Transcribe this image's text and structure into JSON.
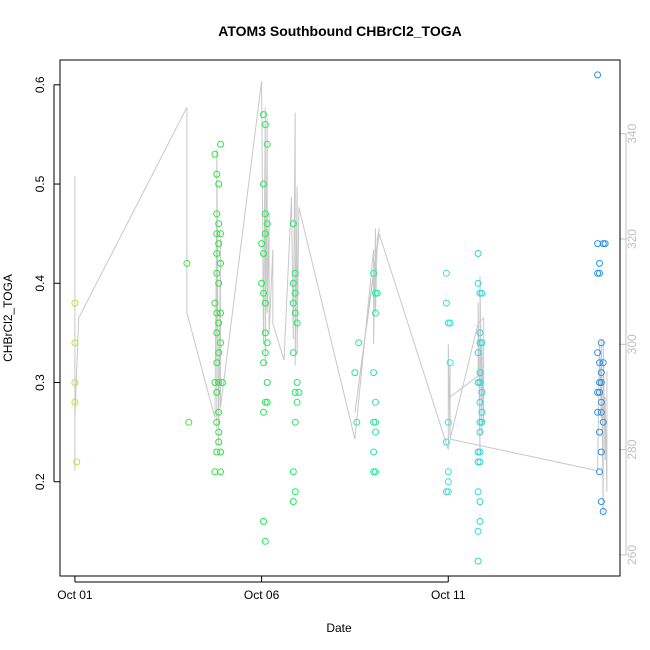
{
  "chart_data": {
    "type": "scatter",
    "title": "ATOM3 Southbound CHBrCl2_TOGA",
    "xlabel": "Date",
    "ylabel": "CHBrCl2_TOGA",
    "x_tick_labels": [
      "Oct 01",
      "Oct 06",
      "Oct 11"
    ],
    "x_tick_values": [
      1,
      6,
      11
    ],
    "xlim": [
      0.6,
      15.6
    ],
    "ylim": [
      0.105,
      0.625
    ],
    "y_ticks": [
      0.2,
      0.3,
      0.4,
      0.5,
      0.6
    ],
    "y_tick_labels": [
      "0.2",
      "0.3",
      "0.4",
      "0.5",
      "0.6"
    ],
    "y2_ticks": [
      260,
      280,
      300,
      320,
      340
    ],
    "y2_tick_labels": [
      "260",
      "280",
      "300",
      "320",
      "340"
    ],
    "y2lim": [
      256,
      354
    ],
    "grid": false,
    "colors": {
      "overlay_line": "#c8c8c8",
      "point_gradient_start": "#b5e636",
      "point_gradient_mid": "#22e838",
      "point_gradient_late": "#2ee8d6",
      "point_gradient_end": "#2b8fe8"
    },
    "series": [
      {
        "values": [
          [
            1.0,
            0.38
          ],
          [
            1.0,
            0.34
          ],
          [
            1.0,
            0.3
          ],
          [
            1.0,
            0.28
          ],
          [
            1.05,
            0.22
          ],
          [
            4.0,
            0.42
          ],
          [
            4.05,
            0.26
          ],
          [
            4.75,
            0.53
          ],
          [
            4.8,
            0.51
          ],
          [
            4.85,
            0.5
          ],
          [
            4.8,
            0.47
          ],
          [
            4.85,
            0.46
          ],
          [
            4.8,
            0.45
          ],
          [
            4.9,
            0.45
          ],
          [
            4.85,
            0.44
          ],
          [
            4.8,
            0.43
          ],
          [
            4.9,
            0.42
          ],
          [
            4.8,
            0.41
          ],
          [
            4.85,
            0.4
          ],
          [
            4.75,
            0.38
          ],
          [
            4.8,
            0.37
          ],
          [
            4.9,
            0.37
          ],
          [
            4.85,
            0.36
          ],
          [
            4.8,
            0.35
          ],
          [
            4.9,
            0.34
          ],
          [
            4.85,
            0.33
          ],
          [
            4.8,
            0.32
          ],
          [
            4.75,
            0.3
          ],
          [
            4.85,
            0.3
          ],
          [
            4.95,
            0.3
          ],
          [
            4.8,
            0.29
          ],
          [
            4.85,
            0.27
          ],
          [
            4.8,
            0.26
          ],
          [
            4.85,
            0.25
          ],
          [
            4.85,
            0.24
          ],
          [
            4.8,
            0.23
          ],
          [
            4.9,
            0.23
          ],
          [
            4.75,
            0.21
          ],
          [
            4.9,
            0.21
          ],
          [
            4.9,
            0.54
          ],
          [
            6.05,
            0.57
          ],
          [
            6.1,
            0.56
          ],
          [
            6.15,
            0.54
          ],
          [
            6.05,
            0.5
          ],
          [
            6.1,
            0.47
          ],
          [
            6.15,
            0.46
          ],
          [
            6.1,
            0.45
          ],
          [
            6.0,
            0.44
          ],
          [
            6.05,
            0.43
          ],
          [
            6.0,
            0.4
          ],
          [
            6.05,
            0.39
          ],
          [
            6.1,
            0.38
          ],
          [
            6.1,
            0.35
          ],
          [
            6.15,
            0.34
          ],
          [
            6.1,
            0.33
          ],
          [
            6.05,
            0.32
          ],
          [
            6.15,
            0.3
          ],
          [
            6.1,
            0.28
          ],
          [
            6.05,
            0.27
          ],
          [
            6.15,
            0.28
          ],
          [
            6.05,
            0.16
          ],
          [
            6.1,
            0.14
          ],
          [
            6.85,
            0.46
          ],
          [
            6.9,
            0.41
          ],
          [
            6.85,
            0.4
          ],
          [
            6.9,
            0.39
          ],
          [
            6.85,
            0.38
          ],
          [
            6.9,
            0.37
          ],
          [
            6.95,
            0.36
          ],
          [
            6.85,
            0.33
          ],
          [
            6.95,
            0.3
          ],
          [
            6.9,
            0.29
          ],
          [
            6.95,
            0.28
          ],
          [
            6.9,
            0.26
          ],
          [
            6.85,
            0.21
          ],
          [
            6.9,
            0.19
          ],
          [
            6.85,
            0.18
          ],
          [
            7.0,
            0.29
          ],
          [
            8.5,
            0.31
          ],
          [
            8.55,
            0.26
          ],
          [
            8.6,
            0.34
          ],
          [
            9.0,
            0.41
          ],
          [
            9.05,
            0.39
          ],
          [
            9.05,
            0.37
          ],
          [
            9.0,
            0.31
          ],
          [
            9.05,
            0.28
          ],
          [
            9.0,
            0.26
          ],
          [
            9.05,
            0.26
          ],
          [
            9.05,
            0.25
          ],
          [
            9.0,
            0.23
          ],
          [
            9.0,
            0.21
          ],
          [
            9.05,
            0.21
          ],
          [
            9.1,
            0.39
          ],
          [
            10.95,
            0.41
          ],
          [
            10.95,
            0.38
          ],
          [
            11.0,
            0.36
          ],
          [
            11.05,
            0.36
          ],
          [
            11.05,
            0.32
          ],
          [
            11.0,
            0.26
          ],
          [
            10.95,
            0.24
          ],
          [
            11.0,
            0.21
          ],
          [
            11.0,
            0.2
          ],
          [
            11.0,
            0.19
          ],
          [
            10.95,
            0.19
          ],
          [
            11.8,
            0.43
          ],
          [
            11.8,
            0.4
          ],
          [
            11.85,
            0.39
          ],
          [
            11.9,
            0.39
          ],
          [
            11.85,
            0.35
          ],
          [
            11.85,
            0.34
          ],
          [
            11.9,
            0.34
          ],
          [
            11.8,
            0.33
          ],
          [
            11.85,
            0.31
          ],
          [
            11.8,
            0.3
          ],
          [
            11.85,
            0.3
          ],
          [
            11.9,
            0.29
          ],
          [
            11.85,
            0.28
          ],
          [
            11.9,
            0.27
          ],
          [
            11.85,
            0.26
          ],
          [
            11.9,
            0.26
          ],
          [
            11.85,
            0.25
          ],
          [
            11.8,
            0.23
          ],
          [
            11.85,
            0.23
          ],
          [
            11.8,
            0.22
          ],
          [
            11.85,
            0.22
          ],
          [
            11.8,
            0.19
          ],
          [
            11.85,
            0.18
          ],
          [
            11.85,
            0.16
          ],
          [
            11.8,
            0.15
          ],
          [
            11.8,
            0.12
          ],
          [
            15.0,
            0.61
          ],
          [
            15.0,
            0.44
          ],
          [
            15.2,
            0.44
          ],
          [
            15.15,
            0.44
          ],
          [
            15.05,
            0.42
          ],
          [
            15.0,
            0.41
          ],
          [
            15.05,
            0.41
          ],
          [
            15.1,
            0.34
          ],
          [
            15.0,
            0.33
          ],
          [
            15.05,
            0.32
          ],
          [
            15.15,
            0.32
          ],
          [
            15.1,
            0.31
          ],
          [
            15.05,
            0.3
          ],
          [
            15.1,
            0.3
          ],
          [
            15.05,
            0.29
          ],
          [
            15.0,
            0.29
          ],
          [
            15.1,
            0.28
          ],
          [
            15.0,
            0.27
          ],
          [
            15.1,
            0.27
          ],
          [
            15.15,
            0.26
          ],
          [
            15.05,
            0.25
          ],
          [
            15.1,
            0.23
          ],
          [
            15.05,
            0.21
          ],
          [
            15.1,
            0.18
          ],
          [
            15.15,
            0.17
          ]
        ]
      },
      {
        "axis": "right",
        "values": [
          [
            1.0,
            332
          ],
          [
            1.0,
            276
          ],
          [
            1.0,
            315
          ],
          [
            1.0,
            286
          ],
          [
            1.1,
            305
          ],
          [
            4.0,
            345
          ],
          [
            4.0,
            306
          ],
          [
            4.75,
            286
          ],
          [
            4.8,
            326
          ],
          [
            4.8,
            284
          ],
          [
            4.8,
            337
          ],
          [
            4.85,
            281
          ],
          [
            4.9,
            320
          ],
          [
            4.9,
            288
          ],
          [
            6.0,
            350
          ],
          [
            6.05,
            300
          ],
          [
            6.1,
            345
          ],
          [
            6.1,
            296
          ],
          [
            6.15,
            343
          ],
          [
            6.15,
            306
          ],
          [
            6.2,
            325
          ],
          [
            6.2,
            302
          ],
          [
            6.3,
            318
          ],
          [
            6.3,
            304
          ],
          [
            6.6,
            297
          ],
          [
            6.8,
            328
          ],
          [
            6.85,
            301
          ],
          [
            6.9,
            344
          ],
          [
            6.9,
            296
          ],
          [
            6.95,
            330
          ],
          [
            6.95,
            298
          ],
          [
            7.0,
            326
          ],
          [
            8.5,
            282
          ],
          [
            9.0,
            318
          ],
          [
            9.0,
            300
          ],
          [
            9.05,
            322
          ],
          [
            9.05,
            306
          ],
          [
            9.1,
            320
          ],
          [
            9.15,
            322
          ],
          [
            8.5,
            287
          ],
          [
            9.15,
            321
          ],
          [
            11.0,
            280
          ],
          [
            11.0,
            300
          ],
          [
            11.05,
            282
          ],
          [
            11.05,
            296
          ],
          [
            11.05,
            290
          ],
          [
            11.8,
            294
          ],
          [
            11.8,
            308
          ],
          [
            11.85,
            279
          ],
          [
            11.85,
            313
          ],
          [
            11.9,
            283
          ],
          [
            11.9,
            300
          ],
          [
            11.95,
            285
          ],
          [
            11.95,
            305
          ],
          [
            11.8,
            304
          ],
          [
            11.05,
            282
          ],
          [
            15.0,
            276
          ],
          [
            15.05,
            300
          ],
          [
            15.1,
            286
          ],
          [
            15.1,
            301
          ],
          [
            15.15,
            268
          ],
          [
            15.15,
            301
          ],
          [
            15.2,
            278
          ],
          [
            15.2,
            290
          ],
          [
            15.25,
            272
          ],
          [
            15.25,
            295
          ]
        ]
      }
    ]
  }
}
